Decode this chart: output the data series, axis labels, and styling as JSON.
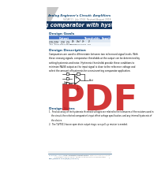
{
  "title_line1": "Analog Engineer's Circuit: Amplifiers",
  "title_line2": "SLOA011  July 2014  Revised August 2018",
  "main_title": "Non-inverting comparator with hysteresis circuit",
  "section_goals": "Design Goals",
  "section_desc": "Design Description",
  "section_notes": "Design Notes",
  "bg_color": "#ffffff",
  "blue_color": "#1a4f7a",
  "dark_blue": "#17375e",
  "gray_color": "#888888",
  "light_blue_header": "#4472c4",
  "light_blue_row": "#dce6f1",
  "lighter_blue_row": "#f2f7fc",
  "light_gray": "#aaaaaa",
  "triangle_color": "#c8c8c8",
  "pdf_color": "#cc2222",
  "footer_left1": "SLOA011  July 2014  Revised August 2018",
  "footer_left2": "http://www.ti.com/lit/an/sloa011/",
  "footer_center": "Copyright 2014-2018, Texas Instruments Incorporated",
  "footer_right1": "Non-inverting comparator with hysteresis circuit",
  "footer_right2": "1"
}
